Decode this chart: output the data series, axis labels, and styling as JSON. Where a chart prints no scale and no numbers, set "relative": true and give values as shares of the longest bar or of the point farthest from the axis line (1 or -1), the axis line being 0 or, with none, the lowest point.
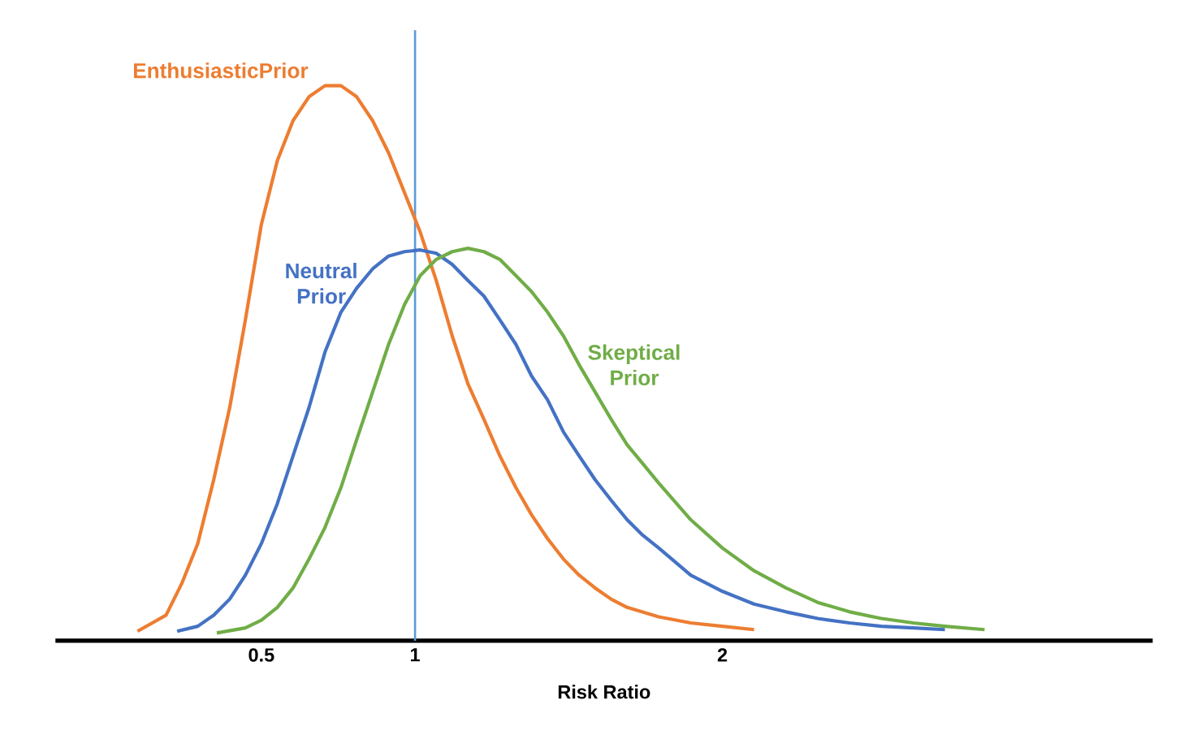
{
  "chart_data": {
    "type": "line",
    "relative": true,
    "xlabel": "Risk Ratio",
    "xlim": [
      -0.17,
      3.4
    ],
    "xticks": [
      0.5,
      1,
      2
    ],
    "ref_lines": [
      {
        "axis": "x",
        "value": 1,
        "color": "#5b9bd5"
      }
    ],
    "series": [
      {
        "name": "EnthusiasticPrior",
        "color": "#ed7d31",
        "x": [
          0.097,
          0.19,
          0.241,
          0.293,
          0.345,
          0.397,
          0.448,
          0.5,
          0.552,
          0.603,
          0.655,
          0.707,
          0.759,
          0.81,
          0.862,
          0.914,
          0.966,
          1.017,
          1.069,
          1.121,
          1.172,
          1.224,
          1.276,
          1.328,
          1.379,
          1.431,
          1.483,
          1.534,
          1.586,
          1.638,
          1.69,
          1.793,
          1.897,
          2.0,
          2.103
        ],
        "values": [
          0.017,
          0.046,
          0.103,
          0.175,
          0.29,
          0.42,
          0.578,
          0.75,
          0.865,
          0.937,
          0.98,
          1,
          1,
          0.98,
          0.937,
          0.879,
          0.807,
          0.736,
          0.649,
          0.549,
          0.463,
          0.399,
          0.333,
          0.276,
          0.227,
          0.184,
          0.147,
          0.118,
          0.095,
          0.075,
          0.06,
          0.043,
          0.032,
          0.026,
          0.02
        ]
      },
      {
        "name": "Neutral Prior",
        "color": "#4472c4",
        "x": [
          0.226,
          0.293,
          0.345,
          0.397,
          0.448,
          0.5,
          0.552,
          0.603,
          0.655,
          0.707,
          0.759,
          0.81,
          0.862,
          0.914,
          0.966,
          1.017,
          1.069,
          1.121,
          1.172,
          1.224,
          1.276,
          1.328,
          1.379,
          1.431,
          1.483,
          1.534,
          1.586,
          1.638,
          1.69,
          1.741,
          1.793,
          1.897,
          2.0,
          2.103,
          2.207,
          2.31,
          2.414,
          2.517,
          2.621,
          2.724
        ],
        "values": [
          0.017,
          0.026,
          0.046,
          0.075,
          0.118,
          0.175,
          0.247,
          0.333,
          0.42,
          0.52,
          0.592,
          0.635,
          0.67,
          0.693,
          0.701,
          0.704,
          0.698,
          0.678,
          0.649,
          0.621,
          0.578,
          0.534,
          0.477,
          0.434,
          0.376,
          0.333,
          0.29,
          0.253,
          0.218,
          0.19,
          0.167,
          0.118,
          0.089,
          0.066,
          0.052,
          0.04,
          0.032,
          0.026,
          0.023,
          0.02
        ]
      },
      {
        "name": "Skeptical Prior",
        "color": "#70ad47",
        "x": [
          0.355,
          0.448,
          0.5,
          0.552,
          0.603,
          0.655,
          0.707,
          0.759,
          0.81,
          0.862,
          0.914,
          0.966,
          1.017,
          1.069,
          1.121,
          1.172,
          1.224,
          1.276,
          1.328,
          1.379,
          1.431,
          1.483,
          1.534,
          1.586,
          1.638,
          1.69,
          1.741,
          1.793,
          1.897,
          2.0,
          2.103,
          2.207,
          2.31,
          2.414,
          2.517,
          2.621,
          2.724,
          2.853
        ],
        "values": [
          0.014,
          0.023,
          0.037,
          0.06,
          0.095,
          0.147,
          0.204,
          0.276,
          0.362,
          0.448,
          0.534,
          0.606,
          0.658,
          0.687,
          0.701,
          0.707,
          0.701,
          0.687,
          0.658,
          0.629,
          0.592,
          0.549,
          0.497,
          0.448,
          0.399,
          0.353,
          0.319,
          0.284,
          0.218,
          0.167,
          0.126,
          0.095,
          0.069,
          0.052,
          0.04,
          0.032,
          0.026,
          0.02
        ]
      }
    ]
  }
}
